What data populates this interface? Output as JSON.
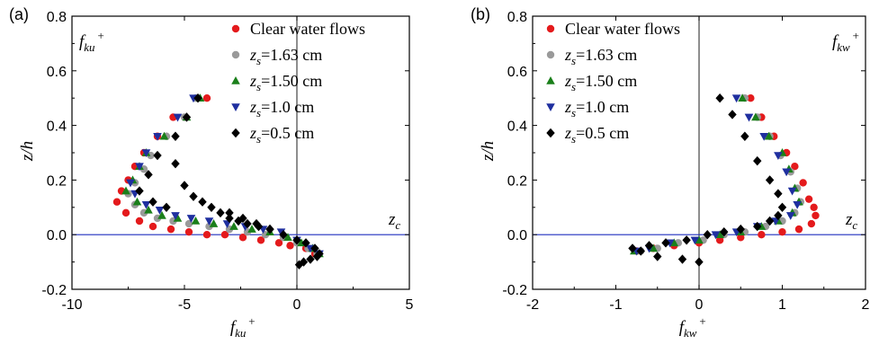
{
  "colors": {
    "clear": "#e41a1c",
    "z163": "#9a9a9a",
    "z150": "#1a7f1a",
    "z10": "#1f2f9f",
    "z05": "#000000",
    "zc_line": "#1f2fbf",
    "axes": "#000000"
  },
  "chart_data": [
    {
      "type": "scatter",
      "panel_label": "(a)",
      "corner_label": {
        "base": "f",
        "sub": "ku",
        "sup": "+"
      },
      "xlabel": {
        "base": "f",
        "sub": "ku",
        "sup": "+"
      },
      "ylabel": "z/h",
      "zc_label": {
        "base": "z",
        "sub": "c"
      },
      "xlim": [
        -10,
        5
      ],
      "ylim": [
        -0.2,
        0.8
      ],
      "xticks": [
        -10,
        -5,
        0,
        5
      ],
      "xtick_labels": [
        "-10",
        "-5",
        "0",
        "5"
      ],
      "yticks": [
        -0.2,
        0.0,
        0.2,
        0.4,
        0.6,
        0.8
      ],
      "ytick_labels": [
        "-0.2",
        "0.0",
        "0.2",
        "0.4",
        "0.6",
        "0.8"
      ],
      "zc_line": 0.0,
      "legend_position": "top-right",
      "series": [
        {
          "name": "Clear water flows",
          "marker": "circle",
          "colorKey": "clear",
          "x": [
            -4.0,
            -5.5,
            -6.2,
            -6.8,
            -7.2,
            -7.5,
            -7.8,
            -8.0,
            -7.6,
            -7.0,
            -6.4,
            -5.6,
            -4.8,
            -4.0,
            -3.2,
            -2.4,
            -1.6,
            -0.8,
            -0.3,
            0.4,
            0.8
          ],
          "y": [
            0.5,
            0.43,
            0.36,
            0.3,
            0.25,
            0.2,
            0.16,
            0.12,
            0.08,
            0.05,
            0.03,
            0.02,
            0.01,
            0.0,
            0.0,
            -0.01,
            -0.02,
            -0.03,
            -0.04,
            -0.05,
            -0.07
          ]
        },
        {
          "name": "1.63 cm",
          "marker": "circle",
          "colorKey": "z163",
          "x": [
            -4.5,
            -5.0,
            -5.8,
            -6.5,
            -6.8,
            -7.2,
            -7.5,
            -7.2,
            -6.8,
            -6.2,
            -5.5,
            -4.8,
            -3.9,
            -3.0,
            -2.2,
            -1.4,
            -0.6,
            0.0,
            0.5,
            0.9
          ],
          "y": [
            0.5,
            0.43,
            0.36,
            0.29,
            0.24,
            0.19,
            0.15,
            0.11,
            0.08,
            0.06,
            0.05,
            0.04,
            0.03,
            0.02,
            0.01,
            0.0,
            -0.01,
            -0.03,
            -0.05,
            -0.07
          ]
        },
        {
          "name": "1.50 cm",
          "marker": "triangle-up",
          "colorKey": "z150",
          "x": [
            -4.3,
            -4.9,
            -5.9,
            -6.7,
            -7.0,
            -7.3,
            -7.6,
            -7.1,
            -6.6,
            -6.0,
            -5.3,
            -4.5,
            -3.7,
            -2.8,
            -2.0,
            -1.2,
            -0.4,
            0.2,
            0.7,
            1.0
          ],
          "y": [
            0.5,
            0.43,
            0.36,
            0.3,
            0.25,
            0.2,
            0.16,
            0.12,
            0.09,
            0.07,
            0.06,
            0.05,
            0.04,
            0.03,
            0.02,
            0.01,
            -0.01,
            -0.03,
            -0.05,
            -0.07
          ]
        },
        {
          "name": "1.0 cm",
          "marker": "triangle-down",
          "colorKey": "z10",
          "x": [
            -4.6,
            -5.3,
            -6.2,
            -6.7,
            -7.0,
            -7.4,
            -7.2,
            -6.7,
            -6.1,
            -5.4,
            -4.7,
            -3.9,
            -3.1,
            -2.3,
            -1.5,
            -0.7,
            0.0,
            0.6,
            1.0
          ],
          "y": [
            0.5,
            0.43,
            0.36,
            0.3,
            0.25,
            0.19,
            0.15,
            0.11,
            0.09,
            0.07,
            0.06,
            0.05,
            0.04,
            0.03,
            0.02,
            0.01,
            -0.02,
            -0.05,
            -0.07
          ]
        },
        {
          "name": "0.5 cm",
          "marker": "diamond",
          "colorKey": "z05",
          "x": [
            -4.4,
            -4.9,
            -5.4,
            -6.2,
            -6.6,
            -7.0,
            -6.4,
            -5.8,
            -5.4,
            -5.0,
            -4.6,
            -4.2,
            -3.8,
            -3.4,
            -3.0,
            -2.6,
            -2.2,
            -1.7,
            -1.2,
            -3.0,
            -2.4,
            -1.8,
            -1.2,
            -0.6,
            0.0,
            0.4,
            0.8,
            1.0,
            0.9,
            0.6,
            0.3,
            0.1
          ],
          "y": [
            0.5,
            0.43,
            0.36,
            0.29,
            0.22,
            0.16,
            0.12,
            0.1,
            0.26,
            0.18,
            0.14,
            0.12,
            0.1,
            0.08,
            0.06,
            0.05,
            0.04,
            0.03,
            0.02,
            0.08,
            0.06,
            0.04,
            0.02,
            0.0,
            -0.02,
            -0.03,
            -0.05,
            -0.07,
            -0.08,
            -0.09,
            -0.1,
            -0.11
          ]
        }
      ]
    },
    {
      "type": "scatter",
      "panel_label": "(b)",
      "corner_label": {
        "base": "f",
        "sub": "kw",
        "sup": "+"
      },
      "xlabel": {
        "base": "f",
        "sub": "kw",
        "sup": "+"
      },
      "ylabel": "z/h",
      "zc_label": {
        "base": "z",
        "sub": "c"
      },
      "xlim": [
        -2,
        2
      ],
      "ylim": [
        -0.2,
        0.8
      ],
      "xticks": [
        -2,
        -1,
        0,
        1,
        2
      ],
      "xtick_labels": [
        "-2",
        "-1",
        "0",
        "1",
        "2"
      ],
      "yticks": [
        -0.2,
        0.0,
        0.2,
        0.4,
        0.6,
        0.8
      ],
      "ytick_labels": [
        "-0.2",
        "0.0",
        "0.2",
        "0.4",
        "0.6",
        "0.8"
      ],
      "zc_line": 0.0,
      "legend_position": "top-left",
      "series": [
        {
          "name": "Clear water flows",
          "marker": "circle",
          "colorKey": "clear",
          "x": [
            0.62,
            0.75,
            0.9,
            1.05,
            1.15,
            1.25,
            1.32,
            1.38,
            1.4,
            1.35,
            1.2,
            1.0,
            0.75,
            0.5,
            0.25,
            0.0,
            -0.3,
            -0.55,
            -0.75
          ],
          "y": [
            0.5,
            0.43,
            0.36,
            0.3,
            0.25,
            0.19,
            0.13,
            0.1,
            0.07,
            0.04,
            0.02,
            0.01,
            0.0,
            -0.01,
            -0.02,
            -0.03,
            -0.04,
            -0.05,
            -0.06
          ]
        },
        {
          "name": "1.63 cm",
          "marker": "circle",
          "colorKey": "z163",
          "x": [
            0.55,
            0.7,
            0.85,
            0.98,
            1.1,
            1.18,
            1.22,
            1.15,
            1.0,
            0.8,
            0.55,
            0.3,
            0.05,
            -0.25,
            -0.5,
            -0.7
          ],
          "y": [
            0.5,
            0.43,
            0.36,
            0.29,
            0.23,
            0.17,
            0.12,
            0.08,
            0.05,
            0.03,
            0.01,
            0.0,
            -0.02,
            -0.03,
            -0.05,
            -0.06
          ]
        },
        {
          "name": "1.50 cm",
          "marker": "triangle-up",
          "colorKey": "z150",
          "x": [
            0.52,
            0.68,
            0.84,
            1.0,
            1.08,
            1.15,
            1.2,
            1.12,
            0.95,
            0.75,
            0.5,
            0.25,
            0.0,
            -0.3,
            -0.55,
            -0.78
          ],
          "y": [
            0.5,
            0.43,
            0.36,
            0.3,
            0.24,
            0.17,
            0.12,
            0.08,
            0.05,
            0.03,
            0.01,
            0.0,
            -0.02,
            -0.03,
            -0.05,
            -0.06
          ]
        },
        {
          "name": "1.0 cm",
          "marker": "triangle-down",
          "colorKey": "z10",
          "x": [
            0.45,
            0.6,
            0.78,
            0.95,
            1.05,
            1.12,
            1.18,
            1.1,
            0.92,
            0.7,
            0.45,
            0.2,
            -0.05,
            -0.35,
            -0.6,
            -0.75
          ],
          "y": [
            0.5,
            0.43,
            0.36,
            0.29,
            0.23,
            0.16,
            0.11,
            0.07,
            0.05,
            0.03,
            0.01,
            0.0,
            -0.02,
            -0.03,
            -0.05,
            -0.06
          ]
        },
        {
          "name": "0.5 cm",
          "marker": "diamond",
          "colorKey": "z05",
          "x": [
            0.25,
            0.4,
            0.55,
            0.7,
            0.85,
            0.95,
            1.0,
            0.95,
            0.85,
            0.7,
            0.5,
            0.3,
            0.1,
            -0.15,
            -0.4,
            -0.6,
            -0.8,
            -0.7,
            -0.5,
            -0.2,
            0.0
          ],
          "y": [
            0.5,
            0.44,
            0.36,
            0.27,
            0.2,
            0.15,
            0.1,
            0.07,
            0.05,
            0.03,
            0.02,
            0.01,
            0.0,
            -0.02,
            -0.03,
            -0.04,
            -0.05,
            -0.06,
            -0.08,
            -0.09,
            -0.1
          ]
        }
      ]
    }
  ],
  "legend": {
    "entries": [
      {
        "marker": "circle",
        "colorKey": "clear",
        "prefix": "",
        "sub": "",
        "text": "Clear water flows"
      },
      {
        "marker": "circle",
        "colorKey": "z163",
        "prefix": "z",
        "sub": "s",
        "text": "=1.63 cm"
      },
      {
        "marker": "triangle-up",
        "colorKey": "z150",
        "prefix": "z",
        "sub": "s",
        "text": "=1.50 cm"
      },
      {
        "marker": "triangle-down",
        "colorKey": "z10",
        "prefix": "z",
        "sub": "s",
        "text": "=1.0 cm"
      },
      {
        "marker": "diamond",
        "colorKey": "z05",
        "prefix": "z",
        "sub": "s",
        "text": "=0.5 cm"
      }
    ]
  }
}
